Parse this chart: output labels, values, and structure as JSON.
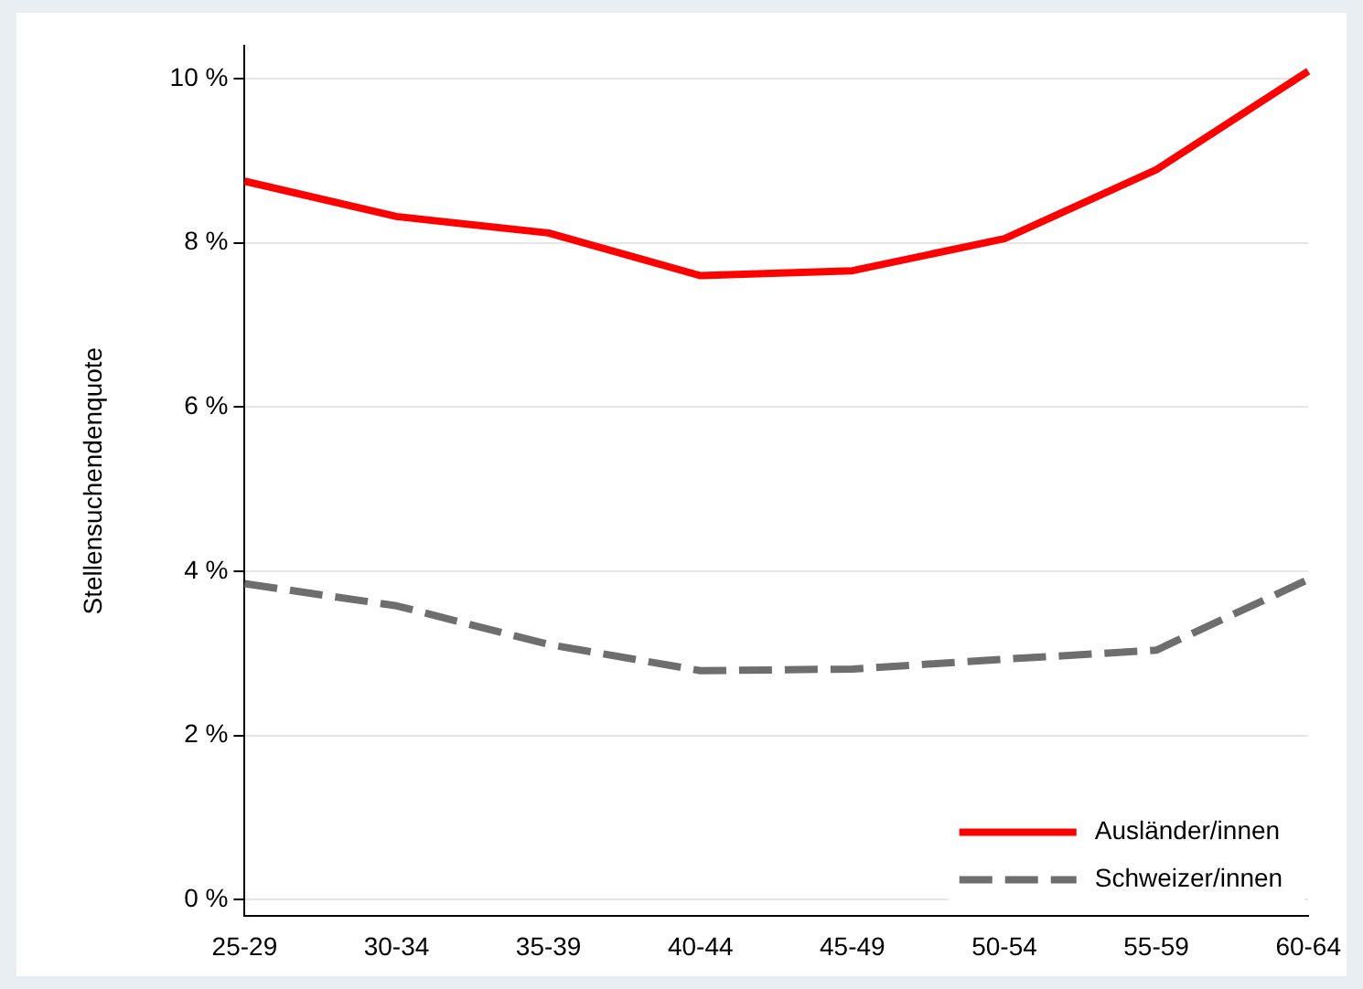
{
  "chart_data": {
    "type": "line",
    "ylabel": "Stellensuchendenquote",
    "categories": [
      "25-29",
      "30-34",
      "35-39",
      "40-44",
      "45-49",
      "50-54",
      "55-59",
      "60-64"
    ],
    "series": [
      {
        "name": "Ausländer/innen",
        "color": "#ff0000",
        "line_style": "solid",
        "values": [
          8.75,
          8.32,
          8.12,
          7.6,
          7.66,
          8.05,
          8.89,
          10.09
        ]
      },
      {
        "name": "Schweizer/innen",
        "color": "#6e6e6e",
        "line_style": "dashed",
        "values": [
          3.85,
          3.58,
          3.11,
          2.79,
          2.81,
          2.93,
          3.04,
          3.9
        ]
      }
    ],
    "ylim": [
      -0.2,
      10.4
    ],
    "yticks": [
      {
        "value": 0,
        "label": "0 %"
      },
      {
        "value": 2,
        "label": "2 %"
      },
      {
        "value": 4,
        "label": "4 %"
      },
      {
        "value": 6,
        "label": "6 %"
      },
      {
        "value": 8,
        "label": "8 %"
      },
      {
        "value": 10,
        "label": "10 %"
      }
    ],
    "grid": "y",
    "legend": "bottom right",
    "marker": "none"
  }
}
